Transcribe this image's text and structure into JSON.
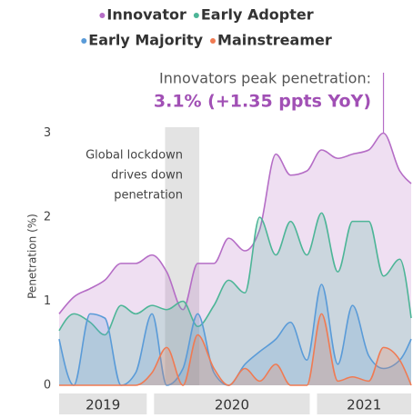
{
  "chart_data": {
    "type": "area",
    "x": [
      2019.44,
      2019.53,
      2019.63,
      2019.72,
      2019.82,
      2019.91,
      2020.01,
      2020.1,
      2020.2,
      2020.29,
      2020.39,
      2020.48,
      2020.58,
      2020.67,
      2020.77,
      2020.86,
      2020.96,
      2021.05,
      2021.15,
      2021.24,
      2021.34,
      2021.43,
      2021.53,
      2021.6
    ],
    "series": [
      {
        "name": "Innovator",
        "color": "#b56dc6",
        "values": [
          0.85,
          1.05,
          1.15,
          1.25,
          1.45,
          1.45,
          1.55,
          1.35,
          0.9,
          1.45,
          1.45,
          1.75,
          1.6,
          1.85,
          2.75,
          2.5,
          2.55,
          2.8,
          2.7,
          2.75,
          2.8,
          3.0,
          2.55,
          2.4
        ]
      },
      {
        "name": "Early Adopter",
        "color": "#4db597",
        "values": [
          0.65,
          0.85,
          0.75,
          0.6,
          0.95,
          0.85,
          0.95,
          0.9,
          1.0,
          0.7,
          0.95,
          1.25,
          1.1,
          2.0,
          1.55,
          1.95,
          1.55,
          2.05,
          1.35,
          1.95,
          1.95,
          1.3,
          1.5,
          0.8
        ]
      },
      {
        "name": "Early Majority",
        "color": "#5a9bd8",
        "values": [
          0.55,
          0.0,
          0.85,
          0.8,
          0.0,
          0.15,
          0.85,
          0.0,
          0.2,
          0.85,
          0.15,
          0.0,
          0.25,
          0.4,
          0.55,
          0.75,
          0.3,
          1.2,
          0.25,
          0.95,
          0.35,
          0.2,
          0.3,
          0.55
        ]
      },
      {
        "name": "Mainstreamer",
        "color": "#f07a52",
        "values": [
          0.0,
          0.0,
          0.0,
          0.0,
          0.0,
          0.0,
          0.15,
          0.45,
          0.0,
          0.6,
          0.2,
          0.0,
          0.2,
          0.05,
          0.25,
          0.0,
          0.0,
          0.85,
          0.05,
          0.1,
          0.05,
          0.45,
          0.3,
          0.0
        ]
      }
    ],
    "xlim": [
      2019.44,
      2021.6
    ],
    "xticks": [
      2019,
      2020,
      2021
    ],
    "ylim": [
      0,
      3.4
    ],
    "yticks": [
      0,
      1,
      2,
      3
    ],
    "ylabel": "Penetration (%)",
    "shade": [
      2020.09,
      2020.3
    ],
    "shade_note": [
      "Global lockdown",
      "drives down",
      "penetration"
    ],
    "peak_note": [
      "Innovators peak penetration:",
      "3.1% (+1.35 ppts YoY)"
    ]
  }
}
